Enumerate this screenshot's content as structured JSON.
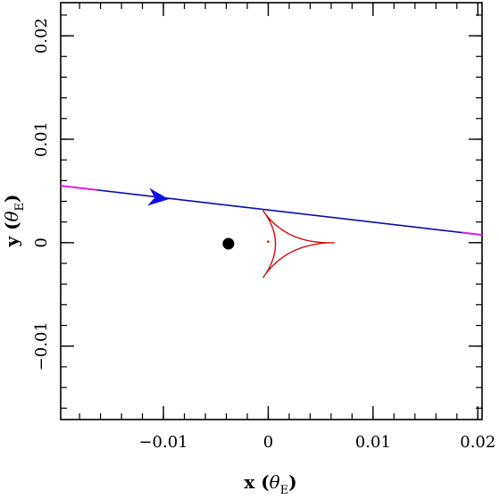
{
  "chart_data": {
    "type": "line",
    "title": "",
    "xlabel": "x (θE)",
    "ylabel": "y (θE)",
    "xlabel_parts": {
      "prefix": "x (",
      "symbol": "θ",
      "subscript": "E",
      "suffix": ")"
    },
    "ylabel_parts": {
      "prefix": "y (",
      "symbol": "θ",
      "subscript": "E",
      "suffix": ")"
    },
    "xlim": [
      -0.0198,
      0.0204
    ],
    "ylim": [
      -0.0171,
      0.0232
    ],
    "x_ticks": [
      {
        "value": -0.01,
        "label": "−0.01"
      },
      {
        "value": 0,
        "label": "0"
      },
      {
        "value": 0.01,
        "label": "0.01"
      },
      {
        "value": 0.02,
        "label": "0.02"
      }
    ],
    "y_ticks": [
      {
        "value": -0.01,
        "label": "−0.01"
      },
      {
        "value": 0,
        "label": "0"
      },
      {
        "value": 0.01,
        "label": "0.01"
      },
      {
        "value": 0.02,
        "label": "0.02"
      }
    ],
    "minor_tick_step": 0.002,
    "grid": false,
    "source_trajectory": {
      "color": "#0b0bb0",
      "highlight_color": "#e020e0",
      "x": [
        -0.0198,
        0.0204
      ],
      "y": [
        0.0055,
        0.00075
      ],
      "highlight_ranges": [
        [
          -0.0198,
          -0.0163
        ],
        [
          0.0185,
          0.0204
        ]
      ],
      "arrow": {
        "x": -0.0105,
        "y": 0.00432,
        "direction": "right",
        "color": "#1010e0"
      }
    },
    "caustic": {
      "color": "#cc1010",
      "cusps": [
        {
          "x": -0.0005,
          "y": 0.0031
        },
        {
          "x": 0.0063,
          "y": 0.0
        },
        {
          "x": -0.0005,
          "y": -0.0034
        }
      ],
      "center_dot": {
        "x": 0.0,
        "y": 0.0001
      }
    },
    "lens_position": {
      "x": -0.0038,
      "y": -0.0001,
      "color": "#000000"
    }
  }
}
